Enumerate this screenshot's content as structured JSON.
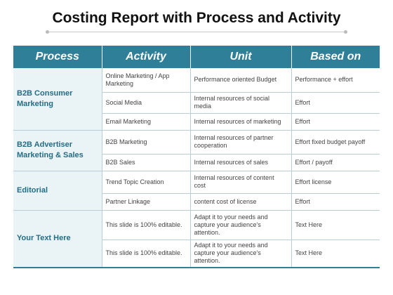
{
  "title": "Costing Report with Process and Activity",
  "colors": {
    "header_bg": "#2e7f97",
    "process_text": "#246d84",
    "process_bg": "#eaf3f6"
  },
  "table": {
    "headers": [
      "Process",
      "Activity",
      "Unit",
      "Based on"
    ],
    "groups": [
      {
        "process": "B2B Consumer Marketing",
        "rows": [
          {
            "activity": "Online Marketing / App Marketing",
            "unit": "Performance oriented Budget",
            "based_on": "Performance + effort"
          },
          {
            "activity": "Social Media",
            "unit": "Internal  resources of social media",
            "based_on": "Effort"
          },
          {
            "activity": "Email Marketing",
            "unit": "Internal  resources of  marketing",
            "based_on": "Effort"
          }
        ]
      },
      {
        "process": "B2B Advertiser Marketing & Sales",
        "rows": [
          {
            "activity": "B2B Marketing",
            "unit": "Internal  resources of partner cooperation",
            "based_on": "Effort fixed budget payoff"
          },
          {
            "activity": "B2B Sales",
            "unit": "Internal  resources of sales",
            "based_on": "Effort / payoff"
          }
        ]
      },
      {
        "process": "Editorial",
        "rows": [
          {
            "activity": "Trend Topic Creation",
            "unit": "Internal  resources of content cost",
            "based_on": "Effort license"
          },
          {
            "activity": "Partner Linkage",
            "unit": "content  cost of license",
            "based_on": "Effort"
          }
        ]
      },
      {
        "process": "Your Text Here",
        "rows": [
          {
            "activity": "This slide is 100% editable.",
            "unit": "Adapt it to your needs and capture your audience's attention.",
            "based_on": "Text Here"
          },
          {
            "activity": "This slide is 100% editable.",
            "unit": "Adapt it to your needs and capture your audience's attention.",
            "based_on": "Text Here"
          }
        ]
      }
    ]
  }
}
